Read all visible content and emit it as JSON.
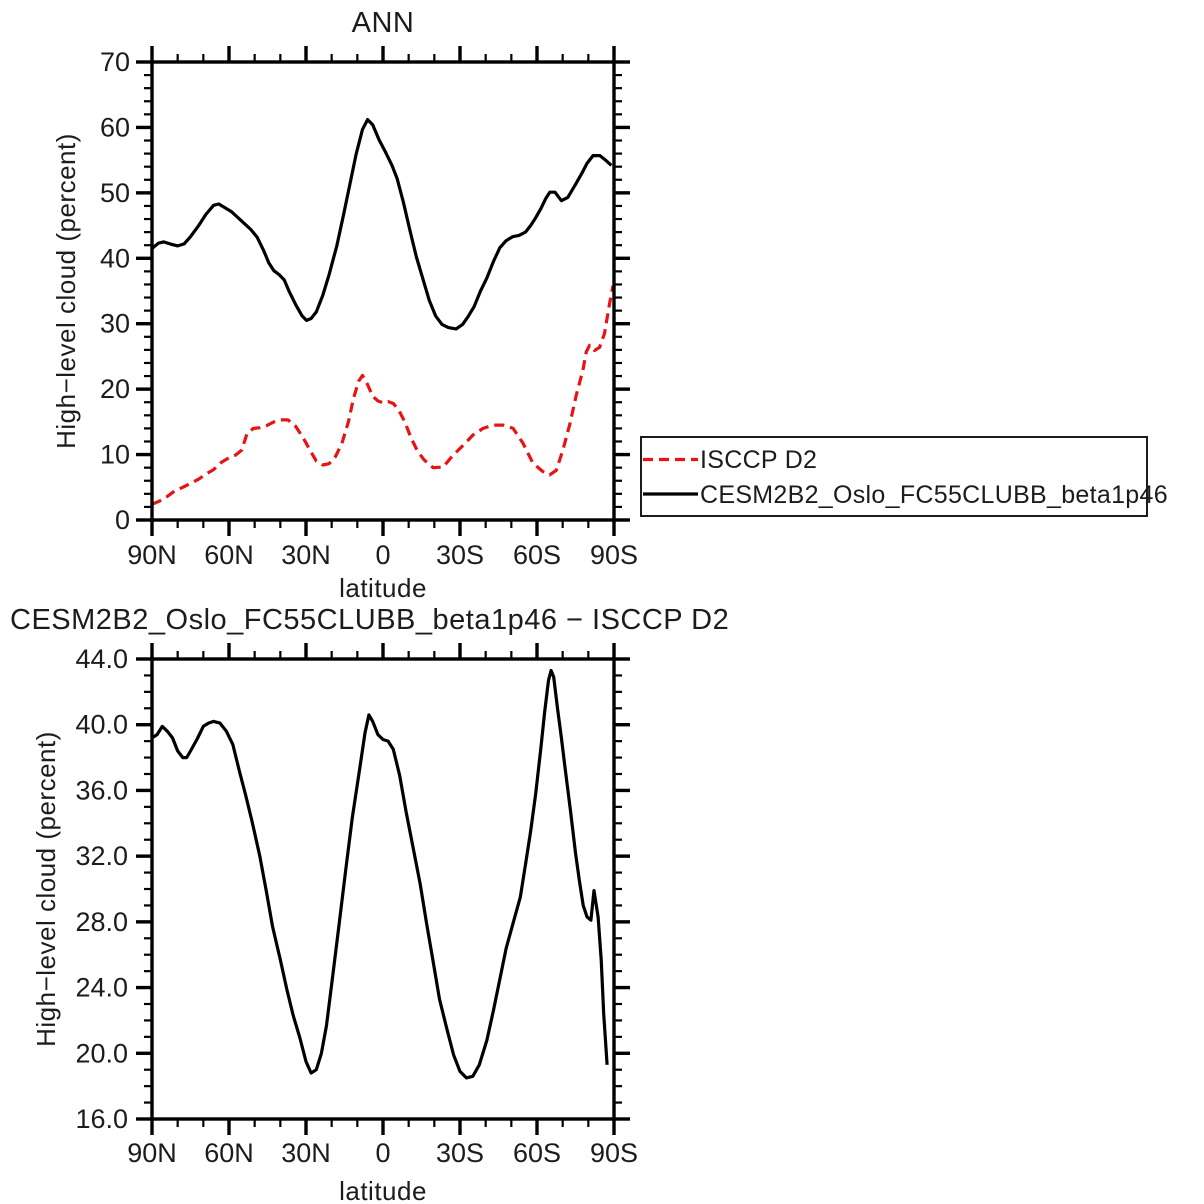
{
  "page": {
    "background": "#ffffff"
  },
  "colors": {
    "model": "#000000",
    "obs": "#e81414",
    "frame": "#000000",
    "text": "#1c1c1c"
  },
  "legend": {
    "position": "outside-right-middle",
    "items": [
      {
        "label": "ISCCP D2",
        "color": "#e81414",
        "style": "dashed"
      },
      {
        "label": "CESM2B2_Oslo_FC55CLUBB_beta1p46",
        "color": "#000000",
        "style": "solid"
      }
    ]
  },
  "chart_data": [
    {
      "type": "line",
      "title": "ANN",
      "xlabel": "latitude",
      "ylabel": "High−level cloud (percent)",
      "xlim": [
        90,
        -90
      ],
      "ylim": [
        0,
        70
      ],
      "x_major_step": 30,
      "x_minor_step": 10,
      "y_major_step": 10,
      "y_minor_step": 2,
      "grid": false,
      "xticks": [
        {
          "v": 90,
          "label": "90N"
        },
        {
          "v": 60,
          "label": "60N"
        },
        {
          "v": 30,
          "label": "30N"
        },
        {
          "v": 0,
          "label": "0"
        },
        {
          "v": -30,
          "label": "30S"
        },
        {
          "v": -60,
          "label": "60S"
        },
        {
          "v": -90,
          "label": "90S"
        }
      ],
      "yticks": [
        {
          "v": 0,
          "label": "0"
        },
        {
          "v": 10,
          "label": "10"
        },
        {
          "v": 20,
          "label": "20"
        },
        {
          "v": 30,
          "label": "30"
        },
        {
          "v": 40,
          "label": "40"
        },
        {
          "v": 50,
          "label": "50"
        },
        {
          "v": 60,
          "label": "60"
        },
        {
          "v": 70,
          "label": "70"
        }
      ],
      "series": [
        {
          "name": "ISCCP D2",
          "color": "#e81414",
          "style": "dashed",
          "points": [
            [
              90,
              2.4
            ],
            [
              87,
              2.9
            ],
            [
              84,
              3.6
            ],
            [
              81,
              4.5
            ],
            [
              78,
              5.0
            ],
            [
              75,
              5.6
            ],
            [
              72,
              6.2
            ],
            [
              69,
              7.0
            ],
            [
              66,
              7.7
            ],
            [
              63,
              8.8
            ],
            [
              60,
              9.5
            ],
            [
              57.5,
              9.9
            ],
            [
              55,
              10.7
            ],
            [
              53,
              13.2
            ],
            [
              50.5,
              14.0
            ],
            [
              48,
              14.1
            ],
            [
              45.5,
              14.4
            ],
            [
              42.5,
              15.0
            ],
            [
              40,
              15.3
            ],
            [
              37,
              15.3
            ],
            [
              34,
              14.3
            ],
            [
              31,
              12.5
            ],
            [
              28.5,
              10.7
            ],
            [
              26,
              9.0
            ],
            [
              23.5,
              8.4
            ],
            [
              21,
              8.6
            ],
            [
              18.5,
              9.7
            ],
            [
              16,
              11.7
            ],
            [
              13.5,
              15.0
            ],
            [
              11.5,
              18.6
            ],
            [
              9.5,
              21.2
            ],
            [
              8,
              22.1
            ],
            [
              6,
              20.7
            ],
            [
              4,
              18.9
            ],
            [
              2,
              18.2
            ],
            [
              0,
              17.9
            ],
            [
              -2,
              18.1
            ],
            [
              -4,
              17.8
            ],
            [
              -6,
              16.9
            ],
            [
              -8.5,
              15.0
            ],
            [
              -11,
              12.5
            ],
            [
              -13.5,
              10.5
            ],
            [
              -16,
              9.2
            ],
            [
              -19.5,
              8.0
            ],
            [
              -23.4,
              8.1
            ],
            [
              -27.3,
              9.9
            ],
            [
              -31.2,
              11.4
            ],
            [
              -35.1,
              13.0
            ],
            [
              -39,
              14.0
            ],
            [
              -42.9,
              14.5
            ],
            [
              -46.8,
              14.5
            ],
            [
              -50.7,
              14.0
            ],
            [
              -54.6,
              11.7
            ],
            [
              -58.4,
              8.7
            ],
            [
              -62.3,
              7.4
            ],
            [
              -64.9,
              6.9
            ],
            [
              -67.5,
              7.6
            ],
            [
              -70.1,
              10.7
            ],
            [
              -72.7,
              14.5
            ],
            [
              -75.3,
              19.1
            ],
            [
              -77.9,
              22.9
            ],
            [
              -79.2,
              25.7
            ],
            [
              -80.5,
              26.7
            ],
            [
              -82.4,
              25.9
            ],
            [
              -84.4,
              26.4
            ],
            [
              -86.3,
              28.5
            ],
            [
              -88.3,
              33.1
            ],
            [
              -89.6,
              35.8
            ]
          ]
        },
        {
          "name": "CESM2B2_Oslo_FC55CLUBB_beta1p46",
          "color": "#000000",
          "style": "solid",
          "points": [
            [
              90,
              41.5
            ],
            [
              87.5,
              42.3
            ],
            [
              85.5,
              42.5
            ],
            [
              83,
              42.2
            ],
            [
              80,
              41.9
            ],
            [
              77.5,
              42.2
            ],
            [
              75,
              43.3
            ],
            [
              72,
              44.9
            ],
            [
              69,
              46.7
            ],
            [
              66,
              48.1
            ],
            [
              64,
              48.3
            ],
            [
              61.5,
              47.7
            ],
            [
              59,
              47.1
            ],
            [
              56.5,
              46.2
            ],
            [
              54,
              45.3
            ],
            [
              51.5,
              44.4
            ],
            [
              49,
              43.2
            ],
            [
              46.5,
              41.2
            ],
            [
              44.5,
              39.3
            ],
            [
              42.5,
              38.1
            ],
            [
              40.5,
              37.5
            ],
            [
              38.5,
              36.7
            ],
            [
              36.5,
              34.9
            ],
            [
              34,
              32.9
            ],
            [
              31.5,
              31.2
            ],
            [
              29.8,
              30.5
            ],
            [
              28,
              30.8
            ],
            [
              26,
              31.8
            ],
            [
              23.5,
              34.3
            ],
            [
              21,
              37.5
            ],
            [
              18,
              41.9
            ],
            [
              15.5,
              46.4
            ],
            [
              13,
              51.1
            ],
            [
              10.5,
              55.9
            ],
            [
              8,
              59.7
            ],
            [
              6,
              61.2
            ],
            [
              4,
              60.4
            ],
            [
              1.5,
              58.1
            ],
            [
              -1,
              56.2
            ],
            [
              -3.5,
              54.2
            ],
            [
              -5.5,
              52.2
            ],
            [
              -8,
              48.5
            ],
            [
              -10.5,
              44.3
            ],
            [
              -13,
              40.2
            ],
            [
              -15.5,
              36.9
            ],
            [
              -18,
              33.6
            ],
            [
              -20.5,
              31.2
            ],
            [
              -23,
              29.9
            ],
            [
              -25.5,
              29.4
            ],
            [
              -28.5,
              29.2
            ],
            [
              -31,
              29.9
            ],
            [
              -33,
              31.0
            ],
            [
              -35.5,
              32.6
            ],
            [
              -38,
              35.0
            ],
            [
              -40.5,
              37.0
            ],
            [
              -43,
              39.5
            ],
            [
              -45.5,
              41.6
            ],
            [
              -48,
              42.7
            ],
            [
              -50.5,
              43.3
            ],
            [
              -53,
              43.5
            ],
            [
              -55.5,
              44.0
            ],
            [
              -57.5,
              45.0
            ],
            [
              -59.5,
              46.2
            ],
            [
              -61.5,
              47.6
            ],
            [
              -63.5,
              49.2
            ],
            [
              -65,
              50.1
            ],
            [
              -67,
              50.1
            ],
            [
              -69.5,
              48.8
            ],
            [
              -72,
              49.3
            ],
            [
              -75,
              51.3
            ],
            [
              -77.5,
              53.0
            ],
            [
              -79.5,
              54.5
            ],
            [
              -81.8,
              55.7
            ],
            [
              -84.5,
              55.7
            ],
            [
              -87,
              54.9
            ],
            [
              -89,
              54.2
            ]
          ]
        }
      ]
    },
    {
      "type": "line",
      "title": "CESM2B2_Oslo_FC55CLUBB_beta1p46 − ISCCP D2",
      "xlabel": "latitude",
      "ylabel": "High−level cloud (percent)",
      "xlim": [
        90,
        -90
      ],
      "ylim": [
        16,
        44
      ],
      "x_major_step": 30,
      "x_minor_step": 10,
      "y_major_step": 4,
      "y_minor_step": 1,
      "grid": false,
      "xticks": [
        {
          "v": 90,
          "label": "90N"
        },
        {
          "v": 60,
          "label": "60N"
        },
        {
          "v": 30,
          "label": "30N"
        },
        {
          "v": 0,
          "label": "0"
        },
        {
          "v": -30,
          "label": "30S"
        },
        {
          "v": -60,
          "label": "60S"
        },
        {
          "v": -90,
          "label": "90S"
        }
      ],
      "yticks": [
        {
          "v": 16,
          "label": "16.0"
        },
        {
          "v": 20,
          "label": "20.0"
        },
        {
          "v": 24,
          "label": "24.0"
        },
        {
          "v": 28,
          "label": "28.0"
        },
        {
          "v": 32,
          "label": "32.0"
        },
        {
          "v": 36,
          "label": "36.0"
        },
        {
          "v": 40,
          "label": "40.0"
        },
        {
          "v": 44,
          "label": "44.0"
        }
      ],
      "series": [
        {
          "name": "CESM2B2_Oslo_FC55CLUBB_beta1p46 − ISCCP D2",
          "color": "#000000",
          "style": "solid",
          "points": [
            [
              90,
              39.2
            ],
            [
              88,
              39.4
            ],
            [
              86,
              39.9
            ],
            [
              84,
              39.6
            ],
            [
              82,
              39.2
            ],
            [
              80,
              38.4
            ],
            [
              78,
              38.0
            ],
            [
              76.5,
              38.0
            ],
            [
              75,
              38.4
            ],
            [
              72.5,
              39.1
            ],
            [
              70,
              39.9
            ],
            [
              68,
              40.1
            ],
            [
              66,
              40.2
            ],
            [
              63.5,
              40.1
            ],
            [
              61,
              39.6
            ],
            [
              58.5,
              38.8
            ],
            [
              56,
              37.2
            ],
            [
              53.5,
              35.7
            ],
            [
              51,
              34.1
            ],
            [
              48,
              32.0
            ],
            [
              45.5,
              29.9
            ],
            [
              43,
              27.7
            ],
            [
              40,
              25.7
            ],
            [
              37.5,
              23.9
            ],
            [
              35,
              22.3
            ],
            [
              32.5,
              21.0
            ],
            [
              30,
              19.5
            ],
            [
              28,
              18.8
            ],
            [
              26,
              19.0
            ],
            [
              24,
              20.0
            ],
            [
              22,
              21.7
            ],
            [
              19.5,
              24.8
            ],
            [
              17,
              28.0
            ],
            [
              14.5,
              31.2
            ],
            [
              12,
              34.3
            ],
            [
              9,
              37.4
            ],
            [
              7,
              39.5
            ],
            [
              5.5,
              40.6
            ],
            [
              4,
              40.2
            ],
            [
              2,
              39.4
            ],
            [
              0,
              39.1
            ],
            [
              -2,
              39.0
            ],
            [
              -4,
              38.5
            ],
            [
              -6.5,
              36.9
            ],
            [
              -9,
              34.7
            ],
            [
              -11.5,
              32.7
            ],
            [
              -14.5,
              30.3
            ],
            [
              -17,
              27.9
            ],
            [
              -19.5,
              25.6
            ],
            [
              -22,
              23.3
            ],
            [
              -25,
              21.4
            ],
            [
              -27.5,
              19.9
            ],
            [
              -30,
              18.9
            ],
            [
              -32.5,
              18.5
            ],
            [
              -35,
              18.6
            ],
            [
              -37.5,
              19.3
            ],
            [
              -40.5,
              20.8
            ],
            [
              -43,
              22.6
            ],
            [
              -45.5,
              24.5
            ],
            [
              -48,
              26.4
            ],
            [
              -51,
              28.1
            ],
            [
              -53.5,
              29.5
            ],
            [
              -55.5,
              31.5
            ],
            [
              -57.5,
              33.5
            ],
            [
              -59.5,
              35.8
            ],
            [
              -61.5,
              38.6
            ],
            [
              -63,
              40.8
            ],
            [
              -64.5,
              42.7
            ],
            [
              -65.5,
              43.3
            ],
            [
              -66.5,
              42.9
            ],
            [
              -68,
              41.0
            ],
            [
              -69.5,
              39.2
            ],
            [
              -71,
              37.3
            ],
            [
              -73,
              34.8
            ],
            [
              -75,
              32.2
            ],
            [
              -76.5,
              30.5
            ],
            [
              -78,
              29.0
            ],
            [
              -79.5,
              28.3
            ],
            [
              -81,
              28.1
            ],
            [
              -82.2,
              29.9
            ],
            [
              -83.8,
              28.3
            ],
            [
              -85,
              25.7
            ],
            [
              -86,
              22.4
            ],
            [
              -87.3,
              19.3
            ]
          ]
        }
      ]
    }
  ]
}
